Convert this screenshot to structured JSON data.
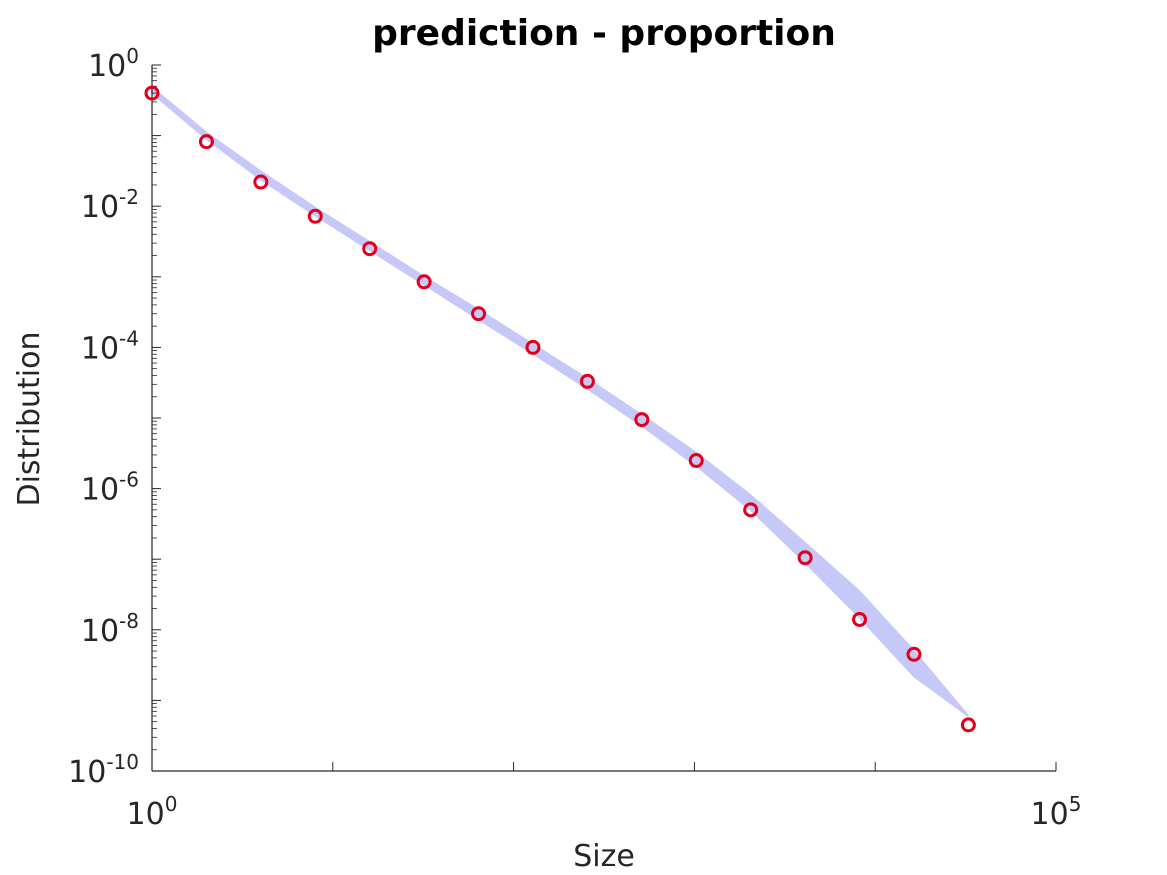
{
  "chart_data": {
    "type": "scatter",
    "title": "prediction - proportion",
    "xlabel": "Size",
    "ylabel": "Distribution",
    "xscale": "log",
    "yscale": "log",
    "xlim": [
      1,
      100000
    ],
    "ylim": [
      1e-10,
      1
    ],
    "xticks": [
      {
        "base": "10",
        "exp": "0"
      },
      {
        "base": "10",
        "exp": "5"
      }
    ],
    "yticks": [
      {
        "base": "10",
        "exp": "0"
      },
      {
        "base": "10",
        "exp": "-2"
      },
      {
        "base": "10",
        "exp": "-4"
      },
      {
        "base": "10",
        "exp": "-6"
      },
      {
        "base": "10",
        "exp": "-8"
      },
      {
        "base": "10",
        "exp": "-10"
      }
    ],
    "grid": false,
    "series": [
      {
        "marker": "circle",
        "color": "#e0001b",
        "points": [
          {
            "x": 1,
            "y": 0.4
          },
          {
            "x": 2,
            "y": 0.082
          },
          {
            "x": 4,
            "y": 0.022
          },
          {
            "x": 8,
            "y": 0.0072
          },
          {
            "x": 16,
            "y": 0.0025
          },
          {
            "x": 32,
            "y": 0.00085
          },
          {
            "x": 64,
            "y": 0.0003
          },
          {
            "x": 128,
            "y": 0.0001
          },
          {
            "x": 256,
            "y": 3.3e-05
          },
          {
            "x": 512,
            "y": 9.5e-06
          },
          {
            "x": 1024,
            "y": 2.5e-06
          },
          {
            "x": 2048,
            "y": 5e-07
          },
          {
            "x": 4096,
            "y": 1.05e-07
          },
          {
            "x": 8192,
            "y": 1.4e-08
          },
          {
            "x": 16384,
            "y": 4.5e-09
          },
          {
            "x": 32768,
            "y": 4.5e-10
          }
        ]
      },
      {
        "type": "band",
        "color": "#c6c8f8",
        "points": [
          {
            "x": 1,
            "lower": 0.4,
            "upper": 0.48
          },
          {
            "x": 2,
            "lower": 0.09,
            "upper": 0.11
          },
          {
            "x": 4,
            "lower": 0.024,
            "upper": 0.031
          },
          {
            "x": 8,
            "lower": 0.0074,
            "upper": 0.0095
          },
          {
            "x": 16,
            "lower": 0.0024,
            "upper": 0.0031
          },
          {
            "x": 32,
            "lower": 0.00078,
            "upper": 0.001
          },
          {
            "x": 64,
            "lower": 0.00025,
            "upper": 0.00034
          },
          {
            "x": 128,
            "lower": 8.2e-05,
            "upper": 0.00011
          },
          {
            "x": 256,
            "lower": 2.6e-05,
            "upper": 3.6e-05
          },
          {
            "x": 512,
            "lower": 7.8e-06,
            "upper": 1.1e-05
          },
          {
            "x": 1024,
            "lower": 2.1e-06,
            "upper": 3.2e-06
          },
          {
            "x": 2048,
            "lower": 5e-07,
            "upper": 8e-07
          },
          {
            "x": 4096,
            "lower": 9e-08,
            "upper": 1.7e-07
          },
          {
            "x": 8192,
            "lower": 1.5e-08,
            "upper": 3.5e-08
          },
          {
            "x": 16384,
            "lower": 2.2e-09,
            "upper": 5e-09
          },
          {
            "x": 32768,
            "lower": 6e-10,
            "upper": 6e-10
          }
        ]
      }
    ]
  }
}
